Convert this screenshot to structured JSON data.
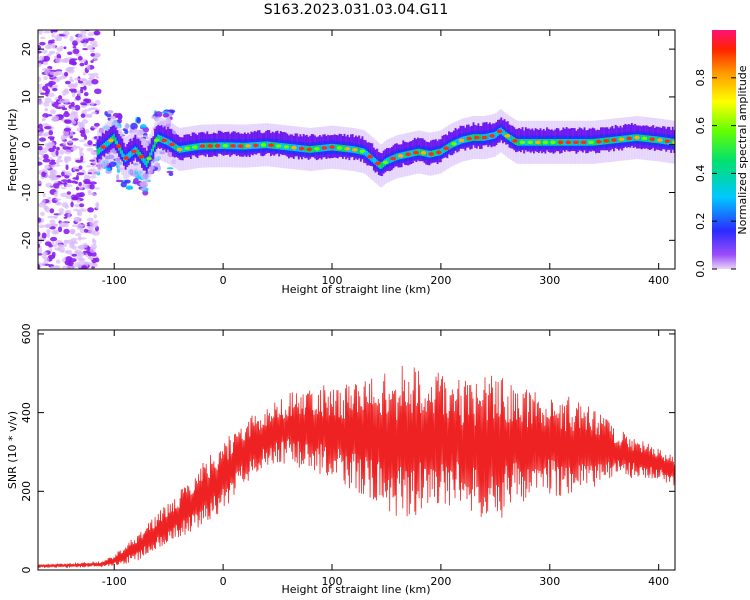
{
  "title": "S163.2023.031.03.04.G11",
  "chart_data": [
    {
      "type": "heatmap",
      "xlabel": "Height of straight line (km)",
      "ylabel": "Frequency (Hz)",
      "xlim": [
        -170,
        415
      ],
      "ylim": [
        -26,
        24
      ],
      "xticks": [
        -100,
        0,
        100,
        200,
        300,
        400
      ],
      "yticks": [
        -20,
        -10,
        0,
        10,
        20
      ],
      "colorbar": {
        "label": "Normalized spectral amplitude",
        "range": [
          0,
          1
        ],
        "ticks": [
          "0.0",
          "0.2",
          "0.4",
          "0.6",
          "0.8"
        ],
        "tick_values": [
          0.0,
          0.2,
          0.4,
          0.6,
          0.8
        ]
      },
      "ridge": {
        "x": [
          -115,
          -100,
          -90,
          -80,
          -70,
          -60,
          -50,
          -40,
          -20,
          0,
          20,
          40,
          60,
          80,
          100,
          120,
          130,
          140,
          145,
          150,
          160,
          170,
          180,
          190,
          200,
          210,
          220,
          230,
          240,
          250,
          255,
          260,
          270,
          280,
          300,
          320,
          340,
          360,
          380,
          400,
          415
        ],
        "y": [
          -1.5,
          1.5,
          -3,
          -1,
          -4,
          1.5,
          0.5,
          -1,
          -0.3,
          -0.2,
          -0.3,
          0,
          -0.5,
          -1,
          -0.5,
          -1,
          -1.5,
          -3.5,
          -4.5,
          -3.5,
          -2.5,
          -2,
          -1.5,
          -2,
          -1.5,
          0,
          1,
          1.5,
          1.5,
          2,
          3,
          2,
          0.5,
          0.5,
          0.5,
          0.5,
          0.5,
          1,
          1.5,
          1,
          0.5
        ]
      }
    },
    {
      "type": "line",
      "xlabel": "Height of straight line (km)",
      "ylabel": "SNR (10 * v/v)",
      "xlim": [
        -170,
        415
      ],
      "ylim": [
        0,
        610
      ],
      "xticks": [
        -100,
        0,
        100,
        200,
        300,
        400
      ],
      "yticks": [
        0,
        200,
        400,
        600
      ],
      "color": "#ee2222",
      "series": [
        {
          "x": [
            -170,
            -140,
            -110,
            -100,
            -80,
            -60,
            -40,
            -20,
            0,
            20,
            40,
            60,
            80,
            100,
            120,
            140,
            160,
            180,
            200,
            220,
            240,
            250,
            260,
            280,
            300,
            320,
            340,
            360,
            380,
            400,
            415
          ],
          "mean": [
            10,
            12,
            15,
            25,
            55,
            100,
            140,
            190,
            240,
            300,
            340,
            360,
            360,
            350,
            340,
            330,
            320,
            330,
            335,
            320,
            310,
            300,
            320,
            320,
            320,
            310,
            310,
            300,
            285,
            270,
            250
          ],
          "amplitude": [
            5,
            6,
            8,
            15,
            35,
            45,
            60,
            80,
            90,
            80,
            80,
            90,
            110,
            120,
            140,
            170,
            200,
            190,
            170,
            160,
            180,
            200,
            170,
            140,
            130,
            130,
            100,
            70,
            50,
            40,
            40
          ]
        }
      ]
    }
  ]
}
